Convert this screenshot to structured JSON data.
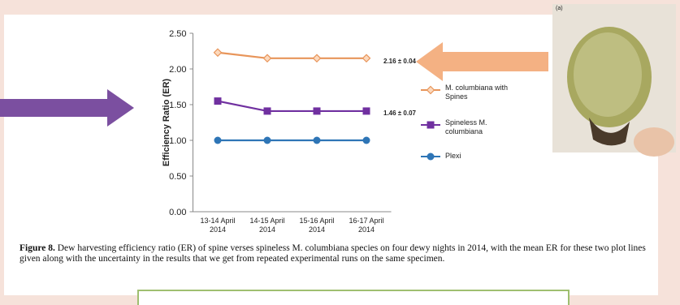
{
  "chart_data": {
    "type": "line",
    "ylabel": "Efficiency Ratio (ER)",
    "categories": [
      "13-14 April 2014",
      "14-15 April 2014",
      "15-16 April 2014",
      "16-17 April 2014"
    ],
    "series": [
      {
        "name": "M. columbiana with Spines",
        "color": "#e8955a",
        "marker": "diamond",
        "values": [
          2.23,
          2.15,
          2.15,
          2.15
        ]
      },
      {
        "name": "Spineless M. columbiana",
        "color": "#7030a0",
        "marker": "square",
        "values": [
          1.55,
          1.41,
          1.41,
          1.41
        ]
      },
      {
        "name": "Plexi",
        "color": "#2e75b6",
        "marker": "circle",
        "values": [
          1.0,
          1.0,
          1.0,
          1.0
        ]
      }
    ],
    "ylim": [
      0,
      2.5
    ],
    "yticks": [
      {
        "value": 0,
        "label": "0.00"
      },
      {
        "value": 0.5,
        "label": "0.50"
      },
      {
        "value": 1,
        "label": "1.00"
      },
      {
        "value": 1.5,
        "label": "1.50"
      },
      {
        "value": 2,
        "label": "2.00"
      },
      {
        "value": 2.5,
        "label": "2.50"
      }
    ],
    "annotations": [
      "2.16 ± 0.04",
      "1.46 ± 0.07"
    ],
    "photo_label": "(a)",
    "caption": {
      "label": "Figure 8.",
      "text": "Dew harvesting efficiency ratio (ER) of spine verses spineless M. columbiana species on four dewy nights in 2014, with the mean ER for these two plot lines given along with the uncertainty in the results that we get from repeated experimental runs on the same specimen."
    }
  }
}
